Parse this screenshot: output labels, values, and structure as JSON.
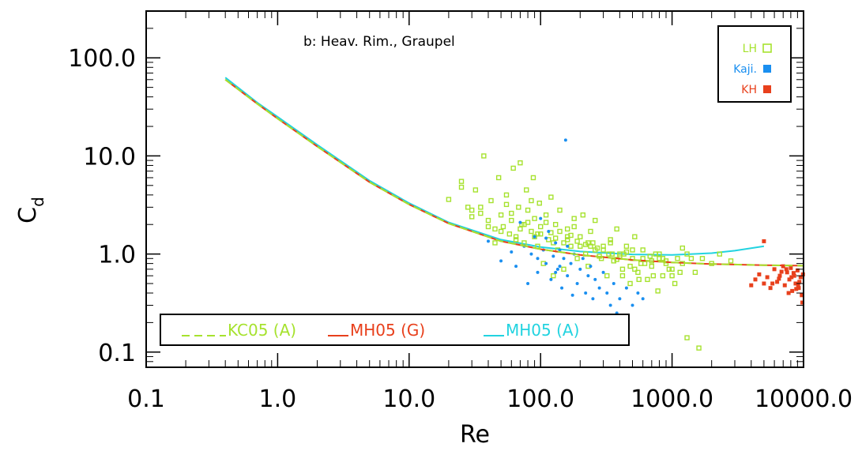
{
  "chart_data": {
    "type": "scatter",
    "title": "",
    "annotation": "b: Heav. Rim., Graupel",
    "xlabel": "Re",
    "ylabel": "C",
    "ylabel_sub": "d",
    "xscale": "log",
    "yscale": "log",
    "xlim": [
      0.1,
      10000
    ],
    "ylim": [
      0.07,
      300
    ],
    "x_ticks": [
      0.1,
      1,
      10,
      100,
      1000,
      10000
    ],
    "x_tick_labels": [
      "0.1",
      "1.0",
      "10.0",
      "100.0",
      "1000.0",
      "10000.0"
    ],
    "y_ticks": [
      0.1,
      1,
      10,
      100
    ],
    "y_tick_labels": [
      "0.1",
      "1.0",
      "10.0",
      "100.0"
    ],
    "legend_points_position": "top-right",
    "legend_lines_position": "bottom-left",
    "series": [
      {
        "name": "KC05 (A)",
        "kind": "line",
        "style": "dashed",
        "color": "#a6e22e",
        "x": [
          0.4,
          0.7,
          1,
          2,
          5,
          10,
          20,
          50,
          100,
          200,
          500,
          1000,
          2000,
          5000,
          10000
        ],
        "y": [
          60,
          34,
          24,
          12.5,
          5.4,
          3.2,
          2.05,
          1.35,
          1.12,
          0.98,
          0.87,
          0.82,
          0.79,
          0.77,
          0.76
        ]
      },
      {
        "name": "MH05 (G)",
        "kind": "line",
        "style": "solid",
        "color": "#e8401c",
        "x": [
          0.4,
          0.7,
          1,
          2,
          5,
          10,
          20,
          50,
          100,
          200,
          500,
          1000,
          2000,
          5000,
          10000
        ],
        "y": [
          60,
          34,
          24,
          12.5,
          5.4,
          3.2,
          2.05,
          1.35,
          1.12,
          0.98,
          0.87,
          0.82,
          0.79,
          0.77,
          0.76
        ]
      },
      {
        "name": "MH05 (A)",
        "kind": "line",
        "style": "solid",
        "color": "#22d3e0",
        "x": [
          0.4,
          0.7,
          1,
          2,
          5,
          10,
          20,
          50,
          100,
          200,
          500,
          1000,
          2000,
          3000,
          5000
        ],
        "y": [
          63,
          35,
          25,
          13,
          5.6,
          3.3,
          2.1,
          1.4,
          1.18,
          1.06,
          0.99,
          0.98,
          1.02,
          1.08,
          1.2
        ]
      },
      {
        "name": "LH",
        "kind": "points",
        "marker": "open-square",
        "color": "#a6e22e",
        "x": [
          20,
          25,
          28,
          30,
          32,
          35,
          37,
          40,
          42,
          45,
          48,
          50,
          52,
          55,
          58,
          60,
          62,
          65,
          68,
          70,
          72,
          75,
          78,
          80,
          85,
          88,
          90,
          95,
          98,
          100,
          105,
          110,
          115,
          120,
          125,
          130,
          135,
          140,
          150,
          160,
          170,
          180,
          190,
          200,
          210,
          220,
          230,
          240,
          250,
          260,
          280,
          300,
          320,
          340,
          360,
          380,
          400,
          420,
          450,
          480,
          500,
          520,
          550,
          580,
          600,
          650,
          700,
          750,
          800,
          850,
          900,
          1000,
          1100,
          1200,
          1300,
          1500,
          1700,
          2000,
          2300,
          2800,
          40,
          55,
          65,
          75,
          85,
          95,
          110,
          125,
          140,
          160,
          180,
          200,
          230,
          260,
          300,
          350,
          400,
          450,
          500,
          600,
          700,
          800,
          900,
          1000,
          1200,
          30,
          45,
          70,
          90,
          120,
          150,
          170,
          220,
          270,
          330,
          380,
          430,
          520,
          620,
          720,
          850,
          1050,
          1300,
          1600,
          25,
          35,
          50,
          60,
          80,
          100,
          130,
          160,
          190,
          240,
          290,
          340,
          420,
          480,
          560,
          680,
          780,
          950,
          1150,
          1400
        ],
        "y": [
          3.6,
          5.5,
          3.0,
          2.8,
          4.5,
          2.6,
          10.0,
          2.2,
          3.5,
          1.8,
          6.0,
          2.5,
          1.9,
          4.0,
          1.6,
          2.2,
          7.5,
          1.5,
          3.0,
          8.5,
          2.0,
          1.3,
          4.5,
          2.8,
          1.7,
          6.0,
          2.3,
          1.2,
          3.3,
          1.9,
          0.8,
          2.5,
          1.4,
          3.8,
          0.6,
          2.0,
          1.1,
          2.8,
          0.7,
          1.8,
          1.2,
          2.3,
          0.9,
          1.5,
          2.5,
          1.0,
          0.75,
          1.7,
          1.3,
          2.2,
          0.95,
          1.1,
          0.6,
          1.4,
          0.85,
          1.8,
          1.0,
          0.7,
          1.2,
          0.5,
          0.9,
          1.5,
          0.65,
          0.8,
          1.1,
          0.55,
          0.75,
          1.0,
          0.9,
          0.6,
          0.85,
          0.7,
          0.9,
          0.8,
          1.0,
          0.65,
          0.9,
          0.8,
          1.0,
          0.85,
          1.9,
          3.2,
          1.4,
          2.0,
          3.5,
          1.6,
          2.1,
          1.3,
          1.7,
          1.4,
          1.9,
          1.2,
          1.3,
          1.1,
          1.2,
          1.0,
          0.95,
          1.05,
          1.1,
          0.9,
          0.85,
          1.0,
          0.8,
          0.6,
          1.15,
          2.4,
          1.3,
          1.8,
          1.5,
          1.65,
          1.3,
          1.55,
          1.25,
          1.15,
          1.0,
          0.88,
          1.0,
          0.7,
          0.8,
          0.6,
          0.9,
          0.5,
          0.14,
          0.11,
          4.8,
          3.0,
          1.7,
          2.6,
          2.1,
          1.6,
          1.45,
          1.5,
          1.35,
          1.2,
          0.9,
          1.3,
          0.6,
          0.75,
          0.55,
          0.95,
          0.42,
          0.7,
          0.65,
          0.9
        ]
      },
      {
        "name": "Kaji.",
        "kind": "points",
        "marker": "filled-circle",
        "color": "#1a8ff0",
        "x": [
          40,
          50,
          60,
          65,
          70,
          75,
          80,
          85,
          90,
          95,
          100,
          105,
          110,
          115,
          120,
          125,
          130,
          135,
          140,
          145,
          150,
          155,
          160,
          170,
          180,
          190,
          200,
          210,
          220,
          230,
          240,
          250,
          260,
          280,
          300,
          320,
          340,
          360,
          380,
          400,
          450,
          500,
          550,
          600,
          160,
          130,
          110,
          95,
          140,
          175
        ],
        "y": [
          1.35,
          0.85,
          1.05,
          0.75,
          2.1,
          1.2,
          0.5,
          1.0,
          1.5,
          0.65,
          2.3,
          1.1,
          0.8,
          1.7,
          0.55,
          0.95,
          1.3,
          0.7,
          1.1,
          0.45,
          0.9,
          14.5,
          0.6,
          0.8,
          1.0,
          0.5,
          0.7,
          0.9,
          0.4,
          0.6,
          0.75,
          0.35,
          0.55,
          0.45,
          0.65,
          0.4,
          0.3,
          0.5,
          0.25,
          0.35,
          0.45,
          0.3,
          0.4,
          0.35,
          1.2,
          0.65,
          1.45,
          0.9,
          0.75,
          0.38
        ]
      },
      {
        "name": "KH",
        "kind": "points",
        "marker": "filled-square",
        "color": "#e8401c",
        "x": [
          4000,
          4300,
          4600,
          5000,
          5300,
          5600,
          6000,
          6300,
          6600,
          7000,
          7200,
          7500,
          7800,
          8000,
          8200,
          8500,
          8700,
          9000,
          9200,
          9500,
          9700,
          9900,
          6800,
          7400,
          8100,
          8800,
          9300,
          5800,
          6500,
          7700,
          8400,
          9100,
          9800,
          5000
        ],
        "y": [
          0.48,
          0.55,
          0.62,
          0.5,
          0.58,
          0.45,
          0.7,
          0.52,
          0.6,
          0.75,
          0.48,
          0.65,
          0.55,
          0.72,
          0.42,
          0.6,
          0.5,
          0.68,
          0.45,
          0.58,
          0.38,
          0.62,
          0.66,
          0.7,
          0.58,
          0.44,
          0.52,
          0.5,
          0.56,
          0.4,
          0.64,
          0.48,
          0.32,
          1.35
        ]
      }
    ]
  }
}
